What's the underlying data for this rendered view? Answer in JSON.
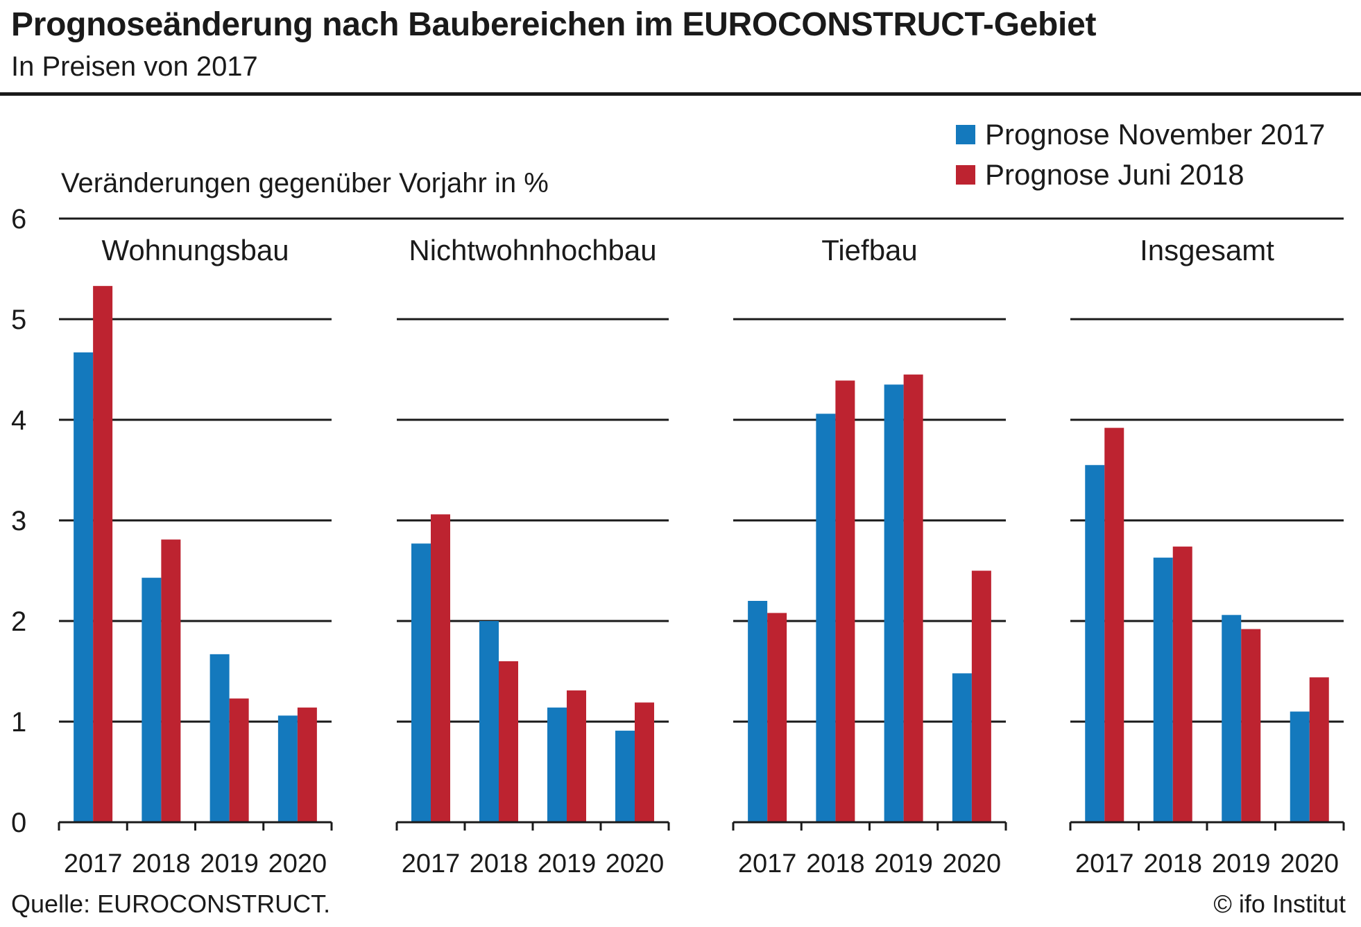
{
  "header": {
    "title": "Prognoseänderung nach Baubereichen im EUROCONSTRUCT-Gebiet",
    "subtitle": "In Preisen von 2017"
  },
  "footer": {
    "source": "Quelle: EUROCONSTRUCT.",
    "copyright": "© ifo Institut"
  },
  "colors": {
    "series_1": "#1479bd",
    "series_2": "#bd2330",
    "grid": "#1a1a1a"
  },
  "chart_data": {
    "type": "bar",
    "ylabel": "Veränderungen gegenüber Vorjahr in %",
    "ylim": [
      0,
      6
    ],
    "yticks": [
      "0",
      "1",
      "2",
      "3",
      "4",
      "5",
      "6"
    ],
    "grid": true,
    "legend_position": "top-right",
    "categories": [
      "2017",
      "2018",
      "2019",
      "2020"
    ],
    "panels": [
      {
        "title": "Wohnungsbau",
        "series": [
          {
            "name": "Prognose November 2017",
            "values": [
              4.67,
              2.43,
              1.67,
              1.06
            ]
          },
          {
            "name": "Prognose Juni 2018",
            "values": [
              5.33,
              2.81,
              1.23,
              1.14
            ]
          }
        ]
      },
      {
        "title": "Nichtwohnhochbau",
        "series": [
          {
            "name": "Prognose November 2017",
            "values": [
              2.77,
              2.0,
              1.14,
              0.91
            ]
          },
          {
            "name": "Prognose Juni 2018",
            "values": [
              3.06,
              1.6,
              1.31,
              1.19
            ]
          }
        ]
      },
      {
        "title": "Tiefbau",
        "series": [
          {
            "name": "Prognose November 2017",
            "values": [
              2.2,
              4.06,
              4.35,
              1.48
            ]
          },
          {
            "name": "Prognose Juni 2018",
            "values": [
              2.08,
              4.39,
              4.45,
              2.5
            ]
          }
        ]
      },
      {
        "title": "Insgesamt",
        "series": [
          {
            "name": "Prognose November 2017",
            "values": [
              3.55,
              2.63,
              2.06,
              1.1
            ]
          },
          {
            "name": "Prognose Juni 2018",
            "values": [
              3.92,
              2.74,
              1.92,
              1.44
            ]
          }
        ]
      }
    ]
  }
}
